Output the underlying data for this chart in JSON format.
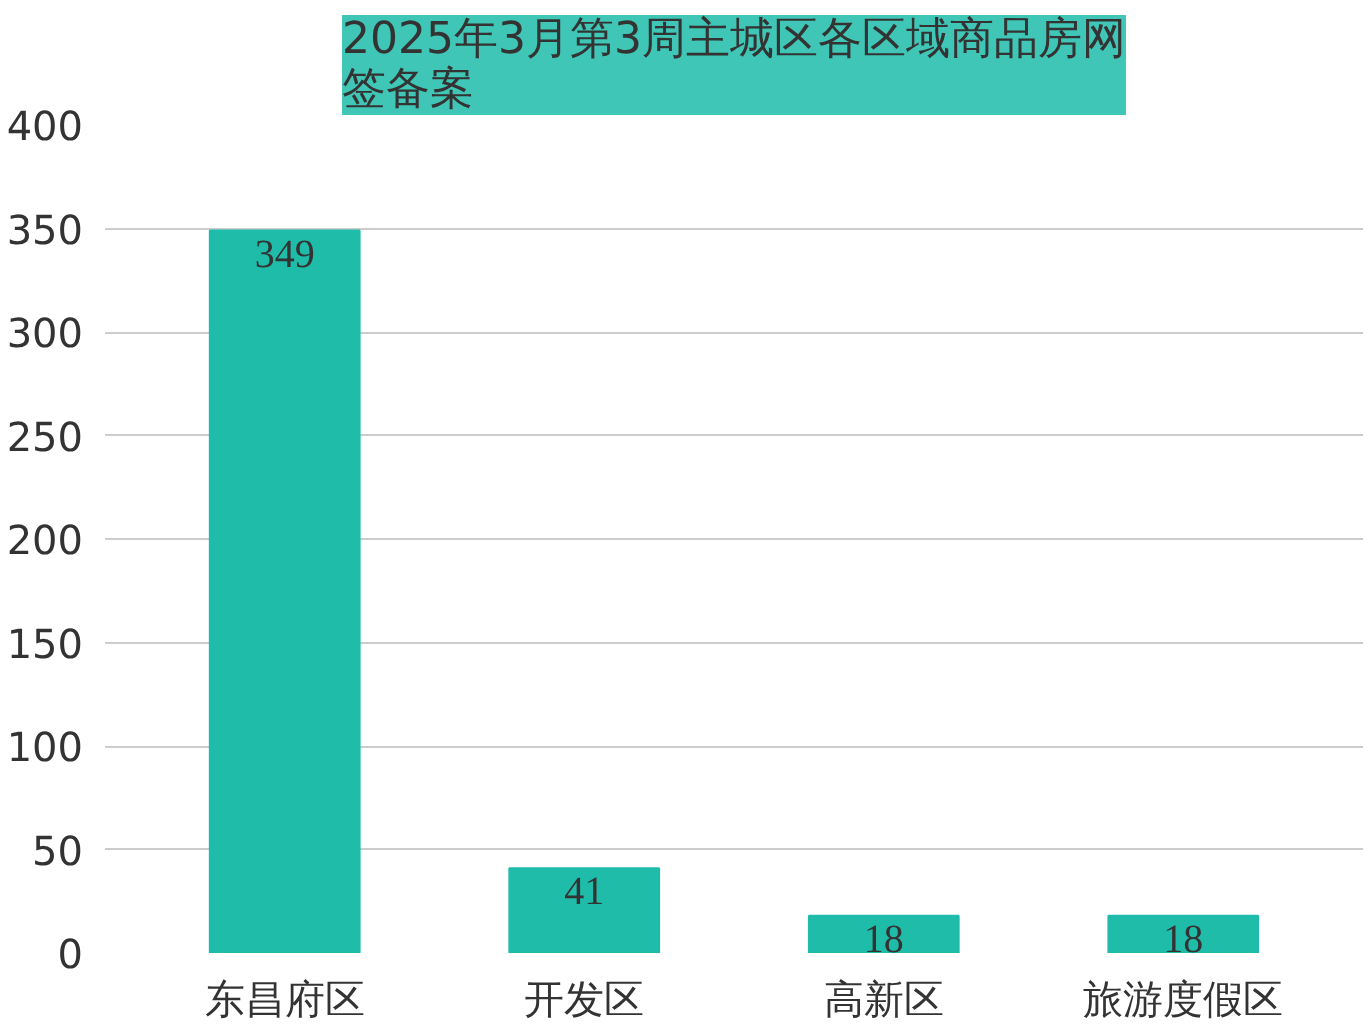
{
  "chart_data": {
    "type": "bar",
    "title": "2025年3月第3周主城区各区域商品房网签备案",
    "categories": [
      "东昌府区",
      "开发区",
      "高新区",
      "旅游度假区"
    ],
    "values": [
      349,
      41,
      18,
      18
    ],
    "color": "#1fbcaa",
    "ylim": [
      0,
      400
    ],
    "yticks": [
      0,
      50,
      100,
      150,
      200,
      250,
      300,
      350,
      400
    ],
    "grid": "y",
    "data_labels": true
  }
}
